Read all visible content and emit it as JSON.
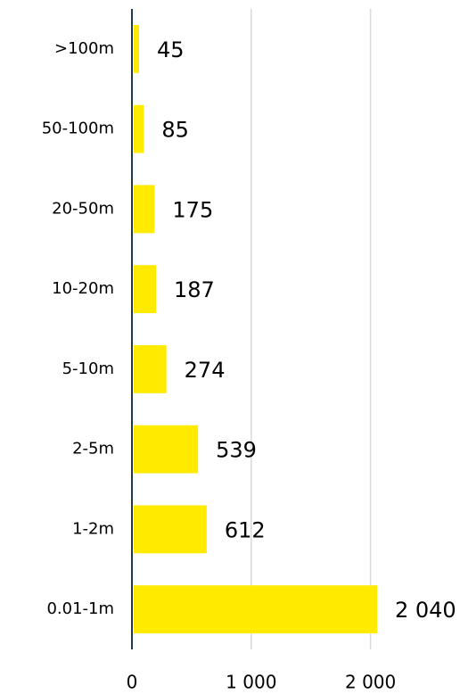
{
  "chart_data": {
    "type": "bar",
    "orientation": "horizontal",
    "categories": [
      ">100m",
      "50-100m",
      "20-50m",
      "10-20m",
      "5-10m",
      "2-5m",
      "1-2m",
      "0.01-1m"
    ],
    "values": [
      45,
      85,
      175,
      187,
      274,
      539,
      612,
      2040
    ],
    "value_labels": [
      "45",
      "85",
      "175",
      "187",
      "274",
      "539",
      "612",
      "2 040"
    ],
    "color": "#ffea00",
    "xlim": [
      0,
      2750
    ],
    "xticks": [
      0,
      {
        "value": 1000,
        "label": "1 000"
      },
      {
        "value": 2000,
        "label": "2 000"
      }
    ],
    "grid": true
  }
}
